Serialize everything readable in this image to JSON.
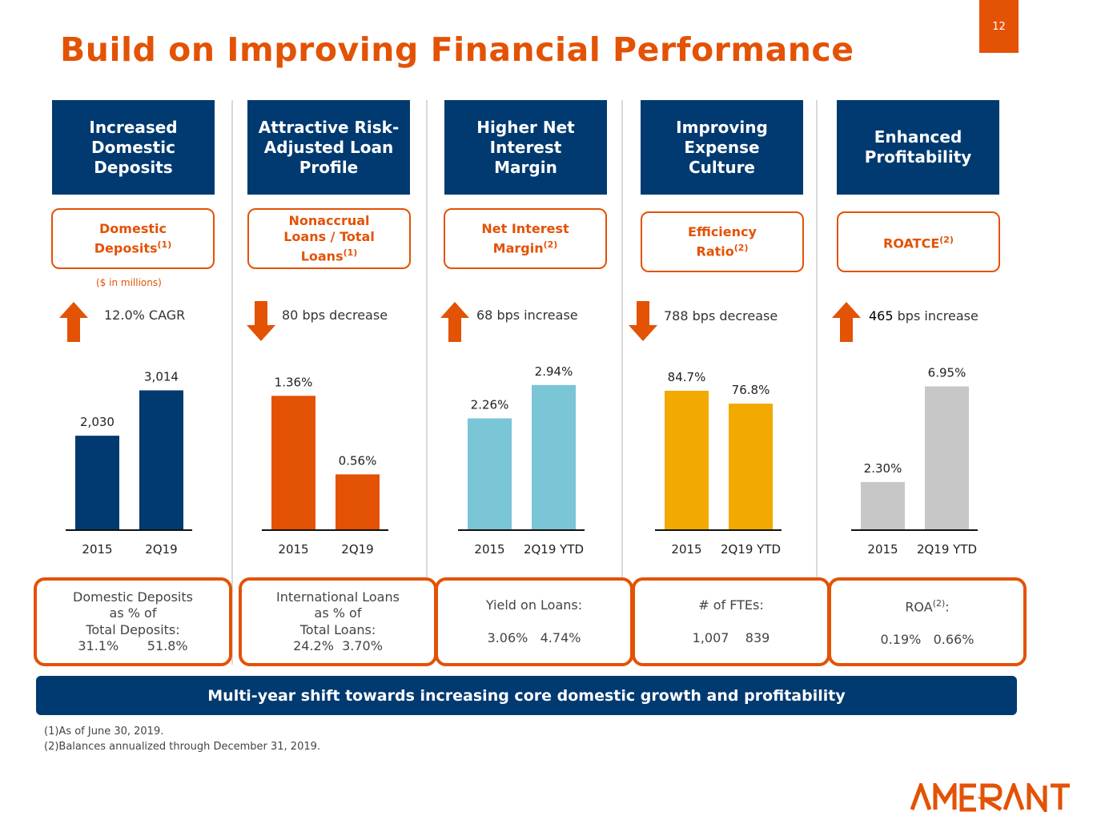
{
  "page_number": "12",
  "title": "Build on Improving Financial Performance",
  "units_note": "($ in millions)",
  "columns": [
    {
      "header": "Increased\nDomestic\nDeposits",
      "metric": "Domestic Deposits",
      "metric_lines": [
        "Domestic",
        "Deposits"
      ],
      "metric_sup": "(1)",
      "direction": "up",
      "change_strong": "",
      "change": "12.0% CAGR",
      "callout_lines": [
        "Domestic Deposits",
        "as % of",
        "Total Deposits:",
        "31.1%       51.8%"
      ]
    },
    {
      "header": "Attractive Risk-\nAdjusted Loan\nProfile",
      "metric_lines": [
        "Nonaccrual",
        "Loans / Total",
        "Loans"
      ],
      "metric_sup": "(1)",
      "direction": "down",
      "change_strong": "",
      "change": "80 bps decrease",
      "callout_lines": [
        "International Loans",
        "as % of",
        "Total Loans:",
        "24.2%  3.70%"
      ]
    },
    {
      "header": "Higher Net\nInterest\nMargin",
      "metric_lines": [
        "Net Interest",
        "Margin"
      ],
      "metric_sup": "(2)",
      "direction": "up",
      "change_strong": "",
      "change": "68 bps increase",
      "callout_lines": [
        "Yield on Loans:",
        "",
        "3.06%   4.74%"
      ]
    },
    {
      "header": "Improving\nExpense\nCulture",
      "metric_lines": [
        "Efficiency",
        "Ratio"
      ],
      "metric_sup": "(2)",
      "direction": "down",
      "change_strong": "",
      "change": "788 bps decrease",
      "callout_lines": [
        "# of FTEs:",
        "",
        "1,007    839"
      ]
    },
    {
      "header": "Enhanced\nProfitability",
      "metric_lines": [
        "ROATCE"
      ],
      "metric_sup": "(2)",
      "direction": "up",
      "change_strong": "465",
      "change": " bps increase",
      "callout_lines": [
        "ROA",
        "",
        "0.19%   0.66%"
      ],
      "callout_sup": "(2)",
      "callout_suffix": ":"
    }
  ],
  "chart_data": [
    {
      "type": "bar",
      "categories": [
        "2015",
        "2Q19"
      ],
      "values": [
        2030,
        3014
      ],
      "labels": [
        "2,030",
        "3,014"
      ],
      "color": "#003a70"
    },
    {
      "type": "bar",
      "categories": [
        "2015",
        "2Q19"
      ],
      "values": [
        1.36,
        0.56
      ],
      "labels": [
        "1.36%",
        "0.56%"
      ],
      "color": "#e35205"
    },
    {
      "type": "bar",
      "categories": [
        "2015",
        "2Q19 YTD"
      ],
      "values": [
        2.26,
        2.94
      ],
      "labels": [
        "2.26%",
        "2.94%"
      ],
      "color": "#7ac5d6"
    },
    {
      "type": "bar",
      "categories": [
        "2015",
        "2Q19 YTD"
      ],
      "values": [
        84.7,
        76.8
      ],
      "labels": [
        "84.7%",
        "76.8%"
      ],
      "color": "#f2a900"
    },
    {
      "type": "bar",
      "categories": [
        "2015",
        "2Q19 YTD"
      ],
      "values": [
        2.3,
        6.95
      ],
      "labels": [
        "2.30%",
        "6.95%"
      ],
      "color": "#c7c7c7"
    }
  ],
  "banner": "Multi-year shift towards increasing core domestic growth and profitability",
  "footnotes": [
    "(1)As of June 30, 2019.",
    "(2)Balances annualized through December 31, 2019."
  ],
  "logo_text": "AMERANT",
  "colors": {
    "accent": "#e35205",
    "navy": "#003a70"
  }
}
